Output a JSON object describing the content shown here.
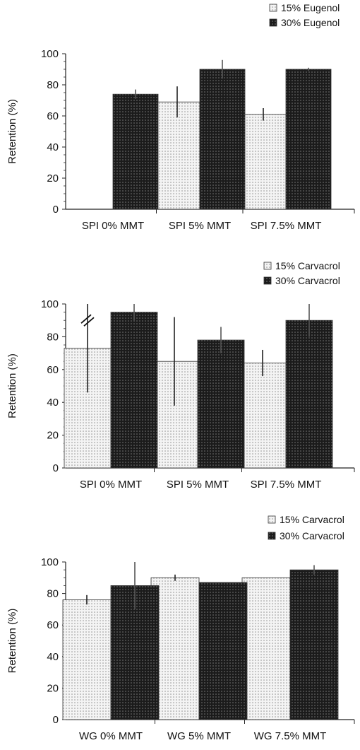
{
  "colors": {
    "light_bar": "#e6e6e6",
    "dark_bar": "#1e1e1e",
    "axis": "#222222"
  },
  "chart_data": [
    {
      "type": "bar",
      "ylabel": "Retention (%)",
      "ylim": [
        0,
        100
      ],
      "yticks": [
        0,
        20,
        40,
        60,
        80,
        100
      ],
      "categories": [
        "SPI 0% MMT",
        "SPI 5% MMT",
        "SPI 7.5% MMT"
      ],
      "legend_position": "top-right",
      "series": [
        {
          "name": "15% Eugenol",
          "values": [
            null,
            69,
            61
          ],
          "errors": [
            null,
            10,
            4
          ]
        },
        {
          "name": "30% Eugenol",
          "values": [
            74,
            90,
            90
          ],
          "errors": [
            3,
            6,
            1
          ]
        }
      ]
    },
    {
      "type": "bar",
      "ylabel": "Retention (%)",
      "ylim": [
        0,
        100
      ],
      "yticks": [
        0,
        20,
        40,
        60,
        80,
        100
      ],
      "categories": [
        "SPI 0% MMT",
        "SPI 5% MMT",
        "SPI 7.5% MMT"
      ],
      "legend_position": "top-right",
      "series": [
        {
          "name": "15% Carvacrol",
          "values": [
            73,
            65,
            64
          ],
          "errors": [
            27,
            27,
            8
          ]
        },
        {
          "name": "30% Carvacrol",
          "values": [
            95,
            78,
            90
          ],
          "errors": [
            5,
            8,
            10
          ]
        }
      ]
    },
    {
      "type": "bar",
      "ylabel": "Retention (%)",
      "ylim": [
        0,
        100
      ],
      "yticks": [
        0,
        20,
        40,
        60,
        80,
        100
      ],
      "categories": [
        "WG 0% MMT",
        "WG 5% MMT",
        "WG 7.5% MMT"
      ],
      "legend_position": "top-right",
      "series": [
        {
          "name": "15% Carvacrol",
          "values": [
            76,
            90,
            90
          ],
          "errors": [
            3,
            2,
            0
          ]
        },
        {
          "name": "30% Carvacrol",
          "values": [
            85,
            87,
            95
          ],
          "errors": [
            15,
            0,
            3
          ]
        }
      ]
    }
  ]
}
